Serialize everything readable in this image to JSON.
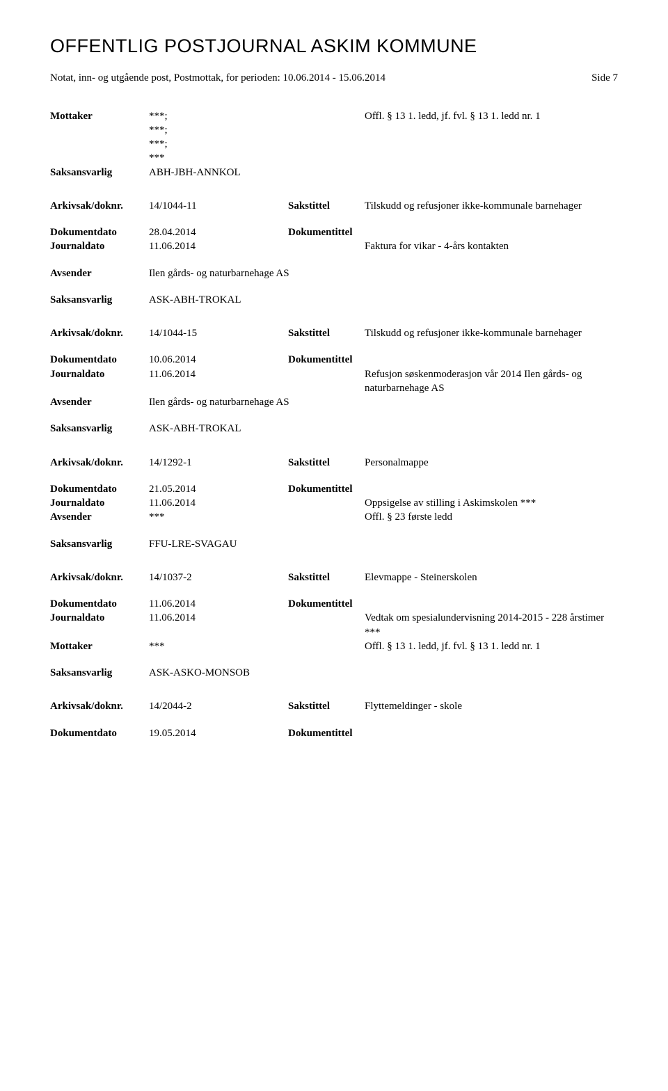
{
  "header": {
    "title": "OFFENTLIG POSTJOURNAL ASKIM KOMMUNE",
    "subtitle": "Notat, inn- og utgående post, Postmottak, for perioden: 10.06.2014 - 15.06.2014",
    "side": "Side 7"
  },
  "labels": {
    "mottaker": "Mottaker",
    "avsender": "Avsender",
    "saksansvarlig": "Saksansvarlig",
    "arkivsak": "Arkivsak/doknr.",
    "dokumentdato": "Dokumentdato",
    "journaldato": "Journaldato",
    "sakstittel": "Sakstittel",
    "dokumentittel": "Dokumentittel"
  },
  "r0": {
    "mottaker_vals": [
      "***;",
      "***;",
      "***;",
      "***"
    ],
    "mottaker_right": "Offl. § 13 1. ledd, jf. fvl. § 13 1. ledd nr. 1",
    "saksansvarlig": "ABH-JBH-ANNKOL"
  },
  "r1": {
    "arkivsak": "14/1044-11",
    "sakstittel": "Tilskudd og refusjoner ikke-kommunale barnehager",
    "dokumentdato": "28.04.2014",
    "journaldato": "11.06.2014",
    "dokumentittel": "Faktura for vikar - 4-års kontakten",
    "avsender": "Ilen gårds- og naturbarnehage AS",
    "saksansvarlig": "ASK-ABH-TROKAL"
  },
  "r2": {
    "arkivsak": "14/1044-15",
    "sakstittel": "Tilskudd og refusjoner ikke-kommunale barnehager",
    "dokumentdato": "10.06.2014",
    "journaldato": "11.06.2014",
    "dokumentittel": "Refusjon søskenmoderasjon vår 2014 Ilen gårds- og naturbarnehage AS",
    "avsender": "Ilen gårds- og naturbarnehage AS",
    "saksansvarlig": "ASK-ABH-TROKAL"
  },
  "r3": {
    "arkivsak": "14/1292-1",
    "sakstittel": "Personalmappe",
    "dokumentdato": "21.05.2014",
    "journaldato": "11.06.2014",
    "dokumentittel": "Oppsigelse av stilling i Askimskolen ***",
    "avsender": "***",
    "avsender_right": "Offl. § 23 første ledd",
    "saksansvarlig": "FFU-LRE-SVAGAU"
  },
  "r4": {
    "arkivsak": "14/1037-2",
    "sakstittel": "Elevmappe - Steinerskolen",
    "dokumentdato": "11.06.2014",
    "journaldato": "11.06.2014",
    "dokumentittel": "Vedtak om spesialundervisning 2014-2015 - 228 årstimer\n***",
    "mottaker": "***",
    "mottaker_right": "Offl. § 13 1. ledd, jf. fvl. § 13 1. ledd nr. 1",
    "saksansvarlig": "ASK-ASKO-MONSOB"
  },
  "r5": {
    "arkivsak": "14/2044-2",
    "sakstittel": "Flyttemeldinger - skole",
    "dokumentdato": "19.05.2014"
  }
}
